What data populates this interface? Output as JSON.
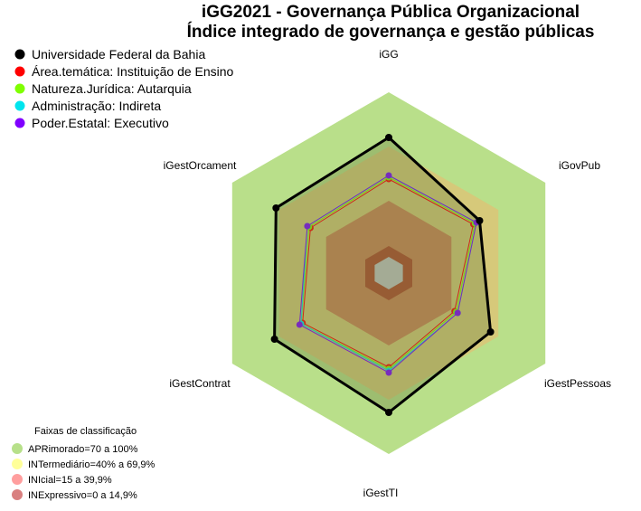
{
  "chart_data": {
    "type": "radar",
    "title": "iGG2021 - Governança Pública Organizacional",
    "subtitle": "Índice integrado de governança e gestão públicas",
    "axes": [
      "iGG",
      "iGovPub",
      "iGestPessoas",
      "iGestTI",
      "iGestContrat",
      "iGestOrcament"
    ],
    "rlim": [
      0,
      100
    ],
    "series": [
      {
        "name": "Universidade Federal da Bahia",
        "color": "#000000",
        "values": [
          75,
          58,
          65,
          77,
          73,
          72
        ]
      },
      {
        "name": "Área.temática: Instituição de Ensino",
        "color": "#ff0000",
        "values": [
          52,
          54,
          42,
          52,
          55,
          50
        ]
      },
      {
        "name": "Natureza.Jurídica: Autarquia",
        "color": "#7fff00",
        "values": [
          53,
          55,
          43,
          53,
          56,
          51
        ]
      },
      {
        "name": "Administração: Indireta",
        "color": "#00e5ee",
        "values": [
          54,
          56,
          44,
          54,
          56,
          52
        ]
      },
      {
        "name": "Poder.Estatal: Executivo",
        "color": "#8000ff",
        "values": [
          54,
          56,
          44,
          55,
          57,
          52
        ]
      }
    ],
    "bands": {
      "title": "Faixas de classificação",
      "items": [
        {
          "label": "APRimorado=70 a 100%",
          "color": "#b9df8a",
          "range": [
            70,
            100
          ]
        },
        {
          "label": "INTermediário=40% a 69,9%",
          "color": "#d6c97a",
          "range": [
            40,
            69.9
          ]
        },
        {
          "label": "INIcial=15 a 39,9%",
          "color": "#cd8558",
          "range": [
            15,
            39.9
          ]
        },
        {
          "label": "INExpressivo=0 a 14,9%",
          "color": "#b04a2e",
          "range": [
            0,
            14.9
          ]
        }
      ],
      "legend_colors": [
        "#b7e08a",
        "#ffff99",
        "#ff9e9e",
        "#d98080"
      ]
    },
    "legend_position": "top-left"
  }
}
